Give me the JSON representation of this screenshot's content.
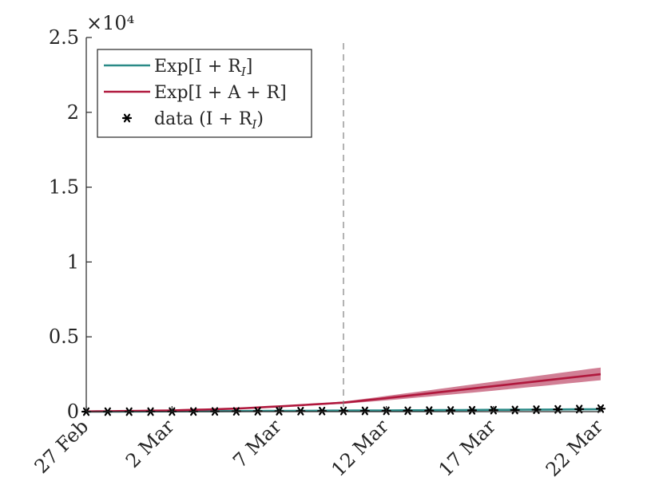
{
  "chart_data": {
    "type": "line",
    "title": "",
    "xlabel": "",
    "ylabel": "",
    "y_exponent_label": "×10⁴",
    "x_tick_labels": [
      "27 Feb",
      "2 Mar",
      "7 Mar",
      "12 Mar",
      "17 Mar",
      "22 Mar"
    ],
    "x_ticks": [
      "2020-02-27",
      "2020-03-02",
      "2020-03-07",
      "2020-03-12",
      "2020-03-17",
      "2020-03-22"
    ],
    "x_range": [
      "2020-02-27",
      "2020-03-22"
    ],
    "y_tick_labels": [
      "0",
      "0.5",
      "1",
      "1.5",
      "2",
      "2.5"
    ],
    "y_ticks": [
      0,
      5000,
      10000,
      15000,
      20000,
      25000
    ],
    "ylim": [
      0,
      25000
    ],
    "grid": false,
    "vertical_line": {
      "x": "2020-03-10",
      "style": "dashed",
      "color": "#808080"
    },
    "legend": {
      "position": "top-left",
      "entries": [
        {
          "label": "Exp[I + R",
          "sub": "I",
          "close": "]",
          "style": "line",
          "color": "#2a8a87"
        },
        {
          "label": "Exp[I + A + R]",
          "style": "line",
          "color": "#b0183d"
        },
        {
          "label": "data (I + R",
          "sub": "I",
          "close": ")",
          "style": "marker",
          "color": "#000000"
        }
      ]
    },
    "series": [
      {
        "name": "Exp[I + R_I]",
        "color": "#2a8a87",
        "band_color": "#7fc4c1",
        "x": [
          "2020-02-27",
          "2020-03-02",
          "2020-03-07",
          "2020-03-10",
          "2020-03-12",
          "2020-03-17",
          "2020-03-22"
        ],
        "y": [
          0,
          20,
          50,
          70,
          80,
          120,
          160
        ],
        "lower": [
          0,
          15,
          40,
          55,
          60,
          90,
          120
        ],
        "upper": [
          0,
          25,
          60,
          85,
          100,
          150,
          200
        ]
      },
      {
        "name": "Exp[I + A + R]",
        "color": "#b0183d",
        "band_color": "#c96982",
        "x": [
          "2020-02-27",
          "2020-03-02",
          "2020-03-05",
          "2020-03-07",
          "2020-03-10",
          "2020-03-12",
          "2020-03-17",
          "2020-03-22"
        ],
        "y": [
          10,
          80,
          200,
          350,
          600,
          900,
          1700,
          2500
        ],
        "lower": [
          10,
          70,
          180,
          310,
          530,
          750,
          1400,
          2100
        ],
        "upper": [
          10,
          90,
          220,
          390,
          670,
          1050,
          2000,
          2950
        ]
      },
      {
        "name": "data (I + R_I)",
        "type": "scatter",
        "marker": "asterisk",
        "color": "#000000",
        "x": [
          "2020-02-27",
          "2020-02-28",
          "2020-02-29",
          "2020-03-01",
          "2020-03-02",
          "2020-03-03",
          "2020-03-04",
          "2020-03-05",
          "2020-03-06",
          "2020-03-07",
          "2020-03-08",
          "2020-03-09",
          "2020-03-10",
          "2020-03-11",
          "2020-03-12",
          "2020-03-13",
          "2020-03-14",
          "2020-03-15",
          "2020-03-16",
          "2020-03-17",
          "2020-03-18",
          "2020-03-19",
          "2020-03-20",
          "2020-03-21",
          "2020-03-22"
        ],
        "y": [
          0,
          0,
          0,
          2,
          5,
          10,
          15,
          20,
          25,
          30,
          35,
          40,
          45,
          50,
          55,
          60,
          70,
          80,
          90,
          100,
          110,
          130,
          150,
          170,
          200
        ]
      }
    ]
  }
}
